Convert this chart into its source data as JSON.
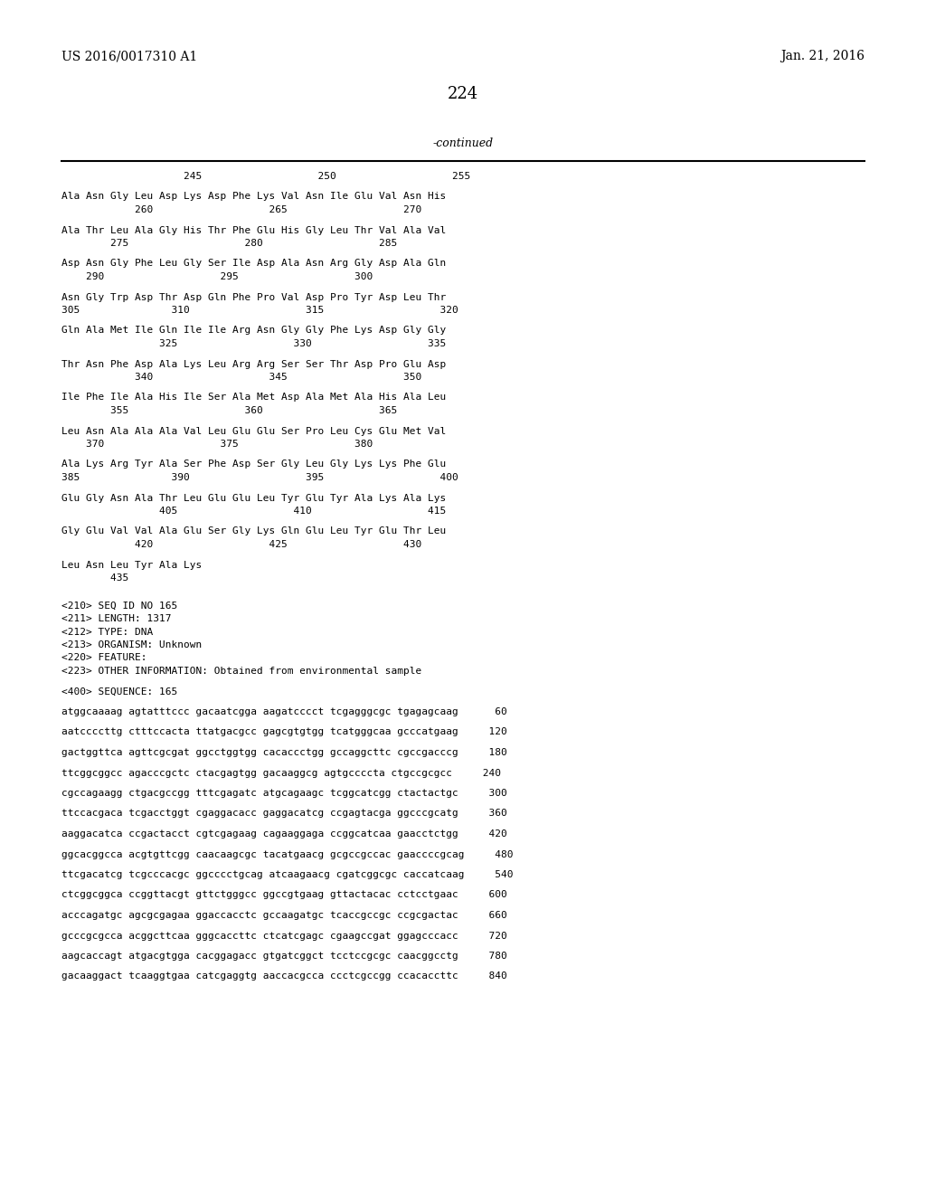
{
  "header_left": "US 2016/0017310 A1",
  "header_right": "Jan. 21, 2016",
  "page_number": "224",
  "continued_text": "-continued",
  "background_color": "#ffffff",
  "text_color": "#000000",
  "sequence_lines": [
    "                    245                   250                   255",
    "",
    "Ala Asn Gly Leu Asp Lys Asp Phe Lys Val Asn Ile Glu Val Asn His",
    "            260                   265                   270",
    "",
    "Ala Thr Leu Ala Gly His Thr Phe Glu His Gly Leu Thr Val Ala Val",
    "        275                   280                   285",
    "",
    "Asp Asn Gly Phe Leu Gly Ser Ile Asp Ala Asn Arg Gly Asp Ala Gln",
    "    290                   295                   300",
    "",
    "Asn Gly Trp Asp Thr Asp Gln Phe Pro Val Asp Pro Tyr Asp Leu Thr",
    "305               310                   315                   320",
    "",
    "Gln Ala Met Ile Gln Ile Ile Arg Asn Gly Gly Phe Lys Asp Gly Gly",
    "                325                   330                   335",
    "",
    "Thr Asn Phe Asp Ala Lys Leu Arg Arg Ser Ser Thr Asp Pro Glu Asp",
    "            340                   345                   350",
    "",
    "Ile Phe Ile Ala His Ile Ser Ala Met Asp Ala Met Ala His Ala Leu",
    "        355                   360                   365",
    "",
    "Leu Asn Ala Ala Ala Val Leu Glu Glu Ser Pro Leu Cys Glu Met Val",
    "    370                   375                   380",
    "",
    "Ala Lys Arg Tyr Ala Ser Phe Asp Ser Gly Leu Gly Lys Lys Phe Glu",
    "385               390                   395                   400",
    "",
    "Glu Gly Asn Ala Thr Leu Glu Glu Leu Tyr Glu Tyr Ala Lys Ala Lys",
    "                405                   410                   415",
    "",
    "Gly Glu Val Val Ala Glu Ser Gly Lys Gln Glu Leu Tyr Glu Thr Leu",
    "            420                   425                   430",
    "",
    "Leu Asn Leu Tyr Ala Lys",
    "        435",
    "",
    "",
    "<210> SEQ ID NO 165",
    "<211> LENGTH: 1317",
    "<212> TYPE: DNA",
    "<213> ORGANISM: Unknown",
    "<220> FEATURE:",
    "<223> OTHER INFORMATION: Obtained from environmental sample",
    "",
    "<400> SEQUENCE: 165",
    "",
    "atggcaaaag agtatttccc gacaatcgga aagatcccct tcgagggcgc tgagagcaag      60",
    "",
    "aatccccttg ctttccacta ttatgacgcc gagcgtgtgg tcatgggcaa gcccatgaag     120",
    "",
    "gactggttca agttcgcgat ggcctggtgg cacaccctgg gccaggcttc cgccgacccg     180",
    "",
    "ttcggcggcc agacccgctc ctacgagtgg gacaaggcg agtgccccta ctgccgcgcc     240",
    "",
    "cgccagaagg ctgacgccgg tttcgagatc atgcagaagc tcggcatcgg ctactactgc     300",
    "",
    "ttccacgaca tcgacctggt cgaggacacc gaggacatcg ccgagtacga ggcccgcatg     360",
    "",
    "aaggacatca ccgactacct cgtcgagaag cagaaggaga ccggcatcaa gaacctctgg     420",
    "",
    "ggcacggcca acgtgttcgg caacaagcgc tacatgaacg gcgccgccac gaaccccgcag     480",
    "",
    "ttcgacatcg tcgcccacgc ggcccctgcag atcaagaacg cgatcggcgc caccatcaag     540",
    "",
    "ctcggcggca ccggttacgt gttctgggcc ggccgtgaag gttactacac cctcctgaac     600",
    "",
    "acccagatgc agcgcgagaa ggaccacctc gccaagatgc tcaccgccgc ccgcgactac     660",
    "",
    "gcccgcgcca acggcttcaa gggcaccttc ctcatcgagc cgaagccgat ggagcccacc     720",
    "",
    "aagcaccagt atgacgtgga cacggagacc gtgatcggct tcctccgcgc caacggcctg     780",
    "",
    "gacaaggact tcaaggtgaa catcgaggtg aaccacgcca ccctcgccgg ccacaccttc     840"
  ]
}
